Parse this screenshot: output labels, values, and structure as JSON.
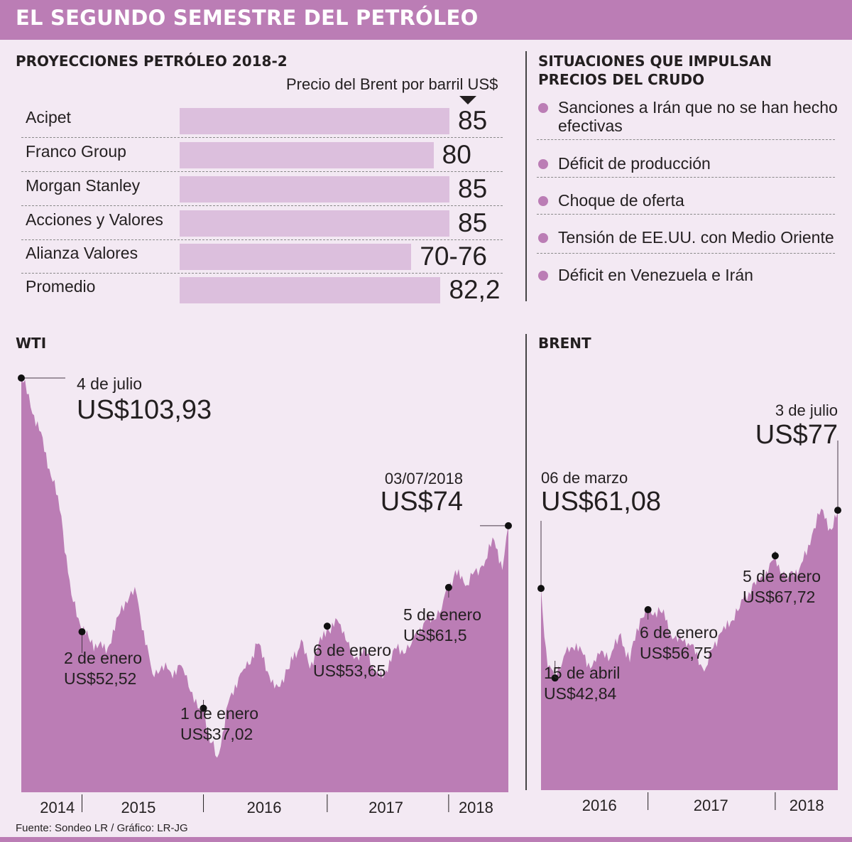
{
  "header": {
    "title": "EL SEGUNDO SEMESTRE DEL PETRÓLEO"
  },
  "projections": {
    "title": "PROYECCIONES PETRÓLEO 2018-2",
    "subtitle": "Precio del Brent por barril US$",
    "rows": [
      {
        "label": "Acipet",
        "value": "85",
        "bar_value": 85
      },
      {
        "label": "Franco Group",
        "value": "80",
        "bar_value": 80
      },
      {
        "label": "Morgan Stanley",
        "value": "85",
        "bar_value": 85
      },
      {
        "label": "Acciones y Valores",
        "value": "85",
        "bar_value": 85
      },
      {
        "label": "Alianza Valores",
        "value": "70-76",
        "bar_value": 73
      },
      {
        "label": "Promedio",
        "value": "82,2",
        "bar_value": 82.2
      }
    ]
  },
  "factors": {
    "title_line1": "SITUACIONES QUE IMPULSAN",
    "title_line2": "PRECIOS DEL CRUDO",
    "items": [
      "Sanciones a Irán que no se han hecho efectivas",
      "Déficit de producción",
      "Choque de oferta",
      "Tensión de EE.UU. con Medio Oriente",
      "Déficit en Venezuela e Irán"
    ]
  },
  "source": "Fuente: Sondeo LR / Gráfico: LR-JG",
  "colors": {
    "accent": "#bb7db5",
    "bar": "#dcbfdd",
    "background": "#f3e9f3"
  },
  "chart_data": [
    {
      "type": "area",
      "title": "WTI",
      "ylim": [
        20,
        110
      ],
      "x_start": "2014-07-04",
      "x_end": "2018-07-03",
      "years": [
        "2014",
        "2015",
        "2016",
        "2017",
        "2018"
      ],
      "series": [
        {
          "x": [
            "2014-07-04",
            "2014-08-01",
            "2014-09-01",
            "2014-10-01",
            "2014-11-01",
            "2014-12-01",
            "2015-01-02",
            "2015-02-01",
            "2015-03-15",
            "2015-05-01",
            "2015-06-15",
            "2015-08-01",
            "2015-09-15",
            "2015-11-01",
            "2015-12-15",
            "2016-01-01",
            "2016-01-20",
            "2016-02-11",
            "2016-03-15",
            "2016-05-01",
            "2016-06-10",
            "2016-08-01",
            "2016-09-15",
            "2016-10-20",
            "2016-11-15",
            "2017-01-06",
            "2017-02-15",
            "2017-03-22",
            "2017-05-01",
            "2017-06-21",
            "2017-08-01",
            "2017-09-15",
            "2017-11-01",
            "2017-12-15",
            "2018-01-05",
            "2018-01-25",
            "2018-03-01",
            "2018-04-15",
            "2018-05-22",
            "2018-06-15",
            "2018-07-03"
          ],
          "values": [
            103.93,
            98,
            93,
            84,
            76,
            60,
            52.52,
            51,
            48,
            58,
            60,
            44,
            45,
            45,
            37,
            37.02,
            30,
            27,
            38,
            45,
            50,
            41,
            45,
            51,
            45,
            53.65,
            54,
            48,
            48,
            43,
            49,
            50,
            55,
            57,
            61.5,
            65,
            62,
            66,
            71,
            65,
            74
          ]
        }
      ],
      "annotations": [
        {
          "date": "4 de julio",
          "price": "US$103,93",
          "x": "2014-07-04",
          "y": 103.93
        },
        {
          "date": "2 de enero",
          "price": "US$52,52",
          "x": "2015-01-02",
          "y": 52.52
        },
        {
          "date": "1 de enero",
          "price": "US$37,02",
          "x": "2016-01-01",
          "y": 37.02
        },
        {
          "date": "6 de enero",
          "price": "US$53,65",
          "x": "2017-01-06",
          "y": 53.65
        },
        {
          "date": "5 de enero",
          "price": "US$61,5",
          "x": "2018-01-05",
          "y": 61.5
        },
        {
          "date": "03/07/2018",
          "price": "US$74",
          "x": "2018-07-03",
          "y": 74
        }
      ]
    },
    {
      "type": "area",
      "title": "BRENT",
      "ylim": [
        20,
        110
      ],
      "x_start": "2016-03-06",
      "x_end": "2018-07-03",
      "years": [
        "2016",
        "2017",
        "2018"
      ],
      "series": [
        {
          "x": [
            "2016-03-06",
            "2016-03-25",
            "2016-04-15",
            "2016-05-15",
            "2016-06-15",
            "2016-07-15",
            "2016-08-15",
            "2016-09-20",
            "2016-10-20",
            "2016-11-15",
            "2016-12-15",
            "2017-01-06",
            "2017-02-15",
            "2017-03-22",
            "2017-05-01",
            "2017-06-21",
            "2017-08-01",
            "2017-09-25",
            "2017-11-01",
            "2017-12-15",
            "2018-01-05",
            "2018-02-09",
            "2018-03-15",
            "2018-04-20",
            "2018-05-22",
            "2018-06-15",
            "2018-07-03"
          ],
          "values": [
            61.08,
            45,
            42.84,
            48,
            50,
            45,
            48,
            47,
            52,
            46,
            55,
            56.75,
            56,
            51,
            50,
            45,
            52,
            57,
            62,
            64,
            67.72,
            63,
            65,
            72,
            77,
            73,
            77
          ]
        }
      ],
      "annotations": [
        {
          "date": "06 de marzo",
          "price": "US$61,08",
          "x": "2016-03-06",
          "y": 61.08
        },
        {
          "date": "15 de abril",
          "price": "US$42,84",
          "x": "2016-04-15",
          "y": 42.84
        },
        {
          "date": "6 de enero",
          "price": "US$56,75",
          "x": "2017-01-06",
          "y": 56.75
        },
        {
          "date": "5 de enero",
          "price": "US$67,72",
          "x": "2018-01-05",
          "y": 67.72
        },
        {
          "date": "3 de julio",
          "price": "US$77",
          "x": "2018-07-03",
          "y": 77
        }
      ]
    }
  ]
}
